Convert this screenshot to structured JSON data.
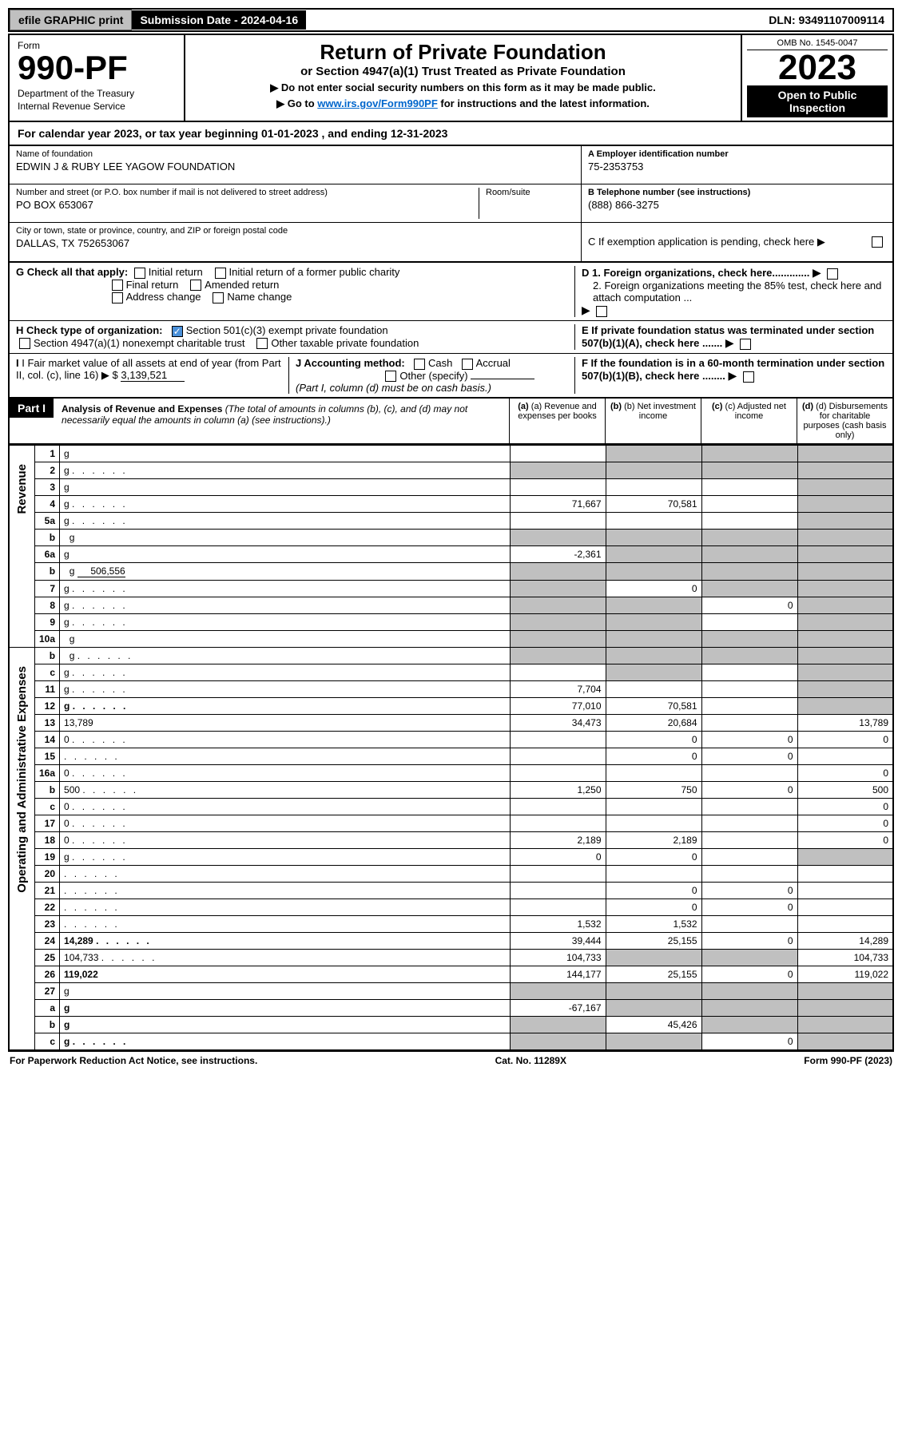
{
  "top": {
    "efile": "efile GRAPHIC print",
    "sub_date_label": "Submission Date - 2024-04-16",
    "dln": "DLN: 93491107009114"
  },
  "header": {
    "form_label": "Form",
    "form_num": "990-PF",
    "dept": "Department of the Treasury\nInternal Revenue Service",
    "title": "Return of Private Foundation",
    "subtitle": "or Section 4947(a)(1) Trust Treated as Private Foundation",
    "note1": "▶ Do not enter social security numbers on this form as it may be made public.",
    "note2_pre": "▶ Go to ",
    "note2_link": "www.irs.gov/Form990PF",
    "note2_post": " for instructions and the latest information.",
    "omb": "OMB No. 1545-0047",
    "year": "2023",
    "open": "Open to Public Inspection"
  },
  "cal": "For calendar year 2023, or tax year beginning 01-01-2023                    , and ending 12-31-2023",
  "id": {
    "name_lbl": "Name of foundation",
    "name": "EDWIN J & RUBY LEE YAGOW FOUNDATION",
    "ein_lbl": "A Employer identification number",
    "ein": "75-2353753",
    "addr_lbl": "Number and street (or P.O. box number if mail is not delivered to street address)",
    "addr": "PO BOX 653067",
    "room_lbl": "Room/suite",
    "tel_lbl": "B Telephone number (see instructions)",
    "tel": "(888) 866-3275",
    "city_lbl": "City or town, state or province, country, and ZIP or foreign postal code",
    "city": "DALLAS, TX  752653067",
    "c": "C If exemption application is pending, check here ▶"
  },
  "checks": {
    "g": "G Check all that apply:",
    "g_opts": [
      "Initial return",
      "Initial return of a former public charity",
      "Final return",
      "Amended return",
      "Address change",
      "Name change"
    ],
    "d1": "D 1. Foreign organizations, check here.............",
    "d2": "2. Foreign organizations meeting the 85% test, check here and attach computation ...",
    "h": "H Check type of organization:",
    "h_501c3": "Section 501(c)(3) exempt private foundation",
    "h_4947": "Section 4947(a)(1) nonexempt charitable trust",
    "h_other": "Other taxable private foundation",
    "e": "E If private foundation status was terminated under section 507(b)(1)(A), check here .......",
    "i_pre": "I Fair market value of all assets at end of year (from Part II, col. (c), line 16) ▶ $ ",
    "i_val": "3,139,521",
    "j": "J Accounting method:",
    "j_cash": "Cash",
    "j_accrual": "Accrual",
    "j_other": "Other (specify)",
    "j_note": "(Part I, column (d) must be on cash basis.)",
    "f": "F If the foundation is in a 60-month termination under section 507(b)(1)(B), check here ........"
  },
  "part1": {
    "label": "Part I",
    "title": "Analysis of Revenue and Expenses",
    "sub": " (The total of amounts in columns (b), (c), and (d) may not necessarily equal the amounts in column (a) (see instructions).)",
    "cols": {
      "a": "(a) Revenue and expenses per books",
      "b": "(b) Net investment income",
      "c": "(c) Adjusted net income",
      "d": "(d) Disbursements for charitable purposes (cash basis only)"
    }
  },
  "side": {
    "rev": "Revenue",
    "exp": "Operating and Administrative Expenses"
  },
  "rows": [
    {
      "n": "1",
      "d": "g",
      "a": "",
      "b": "g",
      "c": "g"
    },
    {
      "n": "2",
      "d": "g",
      "dots": 1,
      "a": "g",
      "b": "g",
      "c": "g"
    },
    {
      "n": "3",
      "d": "g",
      "a": "",
      "b": "",
      "c": ""
    },
    {
      "n": "4",
      "d": "g",
      "dots": 1,
      "a": "71,667",
      "b": "70,581",
      "c": ""
    },
    {
      "n": "5a",
      "d": "g",
      "dots": 1,
      "a": "",
      "b": "",
      "c": ""
    },
    {
      "n": "b",
      "d": "g",
      "inset": 1,
      "a": "g",
      "b": "g",
      "c": "g"
    },
    {
      "n": "6a",
      "d": "g",
      "a": "-2,361",
      "b": "g",
      "c": "g"
    },
    {
      "n": "b",
      "d": "g",
      "inset": 1,
      "val": "506,556",
      "a": "g",
      "b": "g",
      "c": "g"
    },
    {
      "n": "7",
      "d": "g",
      "dots": 1,
      "a": "g",
      "b": "0",
      "c": "g"
    },
    {
      "n": "8",
      "d": "g",
      "dots": 1,
      "a": "g",
      "b": "g",
      "c": "0"
    },
    {
      "n": "9",
      "d": "g",
      "dots": 1,
      "a": "g",
      "b": "g",
      "c": ""
    },
    {
      "n": "10a",
      "d": "g",
      "inset": 1,
      "a": "g",
      "b": "g",
      "c": "g"
    },
    {
      "n": "b",
      "d": "g",
      "dots": 1,
      "inset": 1,
      "a": "g",
      "b": "g",
      "c": "g"
    },
    {
      "n": "c",
      "d": "g",
      "dots": 1,
      "a": "",
      "b": "g",
      "c": ""
    },
    {
      "n": "11",
      "d": "g",
      "dots": 1,
      "a": "7,704",
      "b": "",
      "c": ""
    },
    {
      "n": "12",
      "d": "g",
      "dots": 1,
      "bold": 1,
      "a": "77,010",
      "b": "70,581",
      "c": ""
    },
    {
      "n": "13",
      "d": "13,789",
      "a": "34,473",
      "b": "20,684",
      "c": ""
    },
    {
      "n": "14",
      "d": "0",
      "dots": 1,
      "a": "",
      "b": "0",
      "c": "0"
    },
    {
      "n": "15",
      "d": "",
      "dots": 1,
      "a": "",
      "b": "0",
      "c": "0"
    },
    {
      "n": "16a",
      "d": "0",
      "dots": 1,
      "a": "",
      "b": "",
      "c": ""
    },
    {
      "n": "b",
      "d": "500",
      "dots": 1,
      "a": "1,250",
      "b": "750",
      "c": "0"
    },
    {
      "n": "c",
      "d": "0",
      "dots": 1,
      "a": "",
      "b": "",
      "c": ""
    },
    {
      "n": "17",
      "d": "0",
      "dots": 1,
      "a": "",
      "b": "",
      "c": ""
    },
    {
      "n": "18",
      "d": "0",
      "dots": 1,
      "a": "2,189",
      "b": "2,189",
      "c": ""
    },
    {
      "n": "19",
      "d": "g",
      "dots": 1,
      "a": "0",
      "b": "0",
      "c": ""
    },
    {
      "n": "20",
      "d": "",
      "dots": 1,
      "a": "",
      "b": "",
      "c": ""
    },
    {
      "n": "21",
      "d": "",
      "dots": 1,
      "a": "",
      "b": "0",
      "c": "0"
    },
    {
      "n": "22",
      "d": "",
      "dots": 1,
      "a": "",
      "b": "0",
      "c": "0"
    },
    {
      "n": "23",
      "d": "",
      "dots": 1,
      "a": "1,532",
      "b": "1,532",
      "c": ""
    },
    {
      "n": "24",
      "d": "14,289",
      "dots": 1,
      "bold": 1,
      "a": "39,444",
      "b": "25,155",
      "c": "0"
    },
    {
      "n": "25",
      "d": "104,733",
      "dots": 1,
      "a": "104,733",
      "b": "g",
      "c": "g"
    },
    {
      "n": "26",
      "d": "119,022",
      "bold": 1,
      "a": "144,177",
      "b": "25,155",
      "c": "0"
    },
    {
      "n": "27",
      "d": "g",
      "a": "g",
      "b": "g",
      "c": "g"
    },
    {
      "n": "a",
      "d": "g",
      "bold": 1,
      "a": "-67,167",
      "b": "g",
      "c": "g"
    },
    {
      "n": "b",
      "d": "g",
      "bold": 1,
      "a": "g",
      "b": "45,426",
      "c": "g"
    },
    {
      "n": "c",
      "d": "g",
      "dots": 1,
      "bold": 1,
      "a": "g",
      "b": "g",
      "c": "0"
    }
  ],
  "footer": {
    "left": "For Paperwork Reduction Act Notice, see instructions.",
    "mid": "Cat. No. 11289X",
    "right": "Form 990-PF (2023)"
  }
}
